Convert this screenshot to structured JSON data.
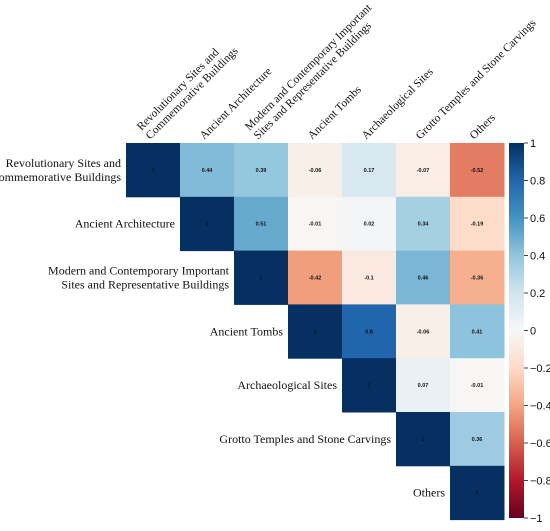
{
  "chart_data": {
    "type": "heatmap",
    "title": "",
    "labels": [
      "Revolutionary Sites and\nCommemorative Buildings",
      "Ancient Architecture",
      "Modern and Contemporary Important\nSites and Representative Buildings",
      "Ancient Tombs",
      "Archaeological Sites",
      "Grotto Temples and Stone Carvings",
      "Others"
    ],
    "matrix": [
      [
        1,
        0.44,
        0.39,
        -0.06,
        0.17,
        -0.07,
        -0.52
      ],
      [
        null,
        1,
        0.51,
        -0.01,
        0.02,
        0.34,
        -0.19
      ],
      [
        null,
        null,
        1,
        -0.42,
        -0.1,
        0.46,
        -0.36
      ],
      [
        null,
        null,
        null,
        1,
        0.8,
        -0.06,
        0.41
      ],
      [
        null,
        null,
        null,
        null,
        1,
        0.07,
        -0.01
      ],
      [
        null,
        null,
        null,
        null,
        null,
        1,
        0.36
      ],
      [
        null,
        null,
        null,
        null,
        null,
        null,
        1
      ]
    ],
    "colorbar": {
      "range": [
        -1,
        1
      ],
      "ticks": [
        "1",
        "0.8",
        "0.6",
        "0.4",
        "0.2",
        "0",
        "−0.2",
        "−0.4",
        "−0.6",
        "−0.8",
        "−1"
      ],
      "tick_values": [
        1,
        0.8,
        0.6,
        0.4,
        0.2,
        0,
        -0.2,
        -0.4,
        -0.6,
        -0.8,
        -1
      ],
      "colormap": "RdBu"
    },
    "layout": "upper-triangle",
    "grid": false
  }
}
